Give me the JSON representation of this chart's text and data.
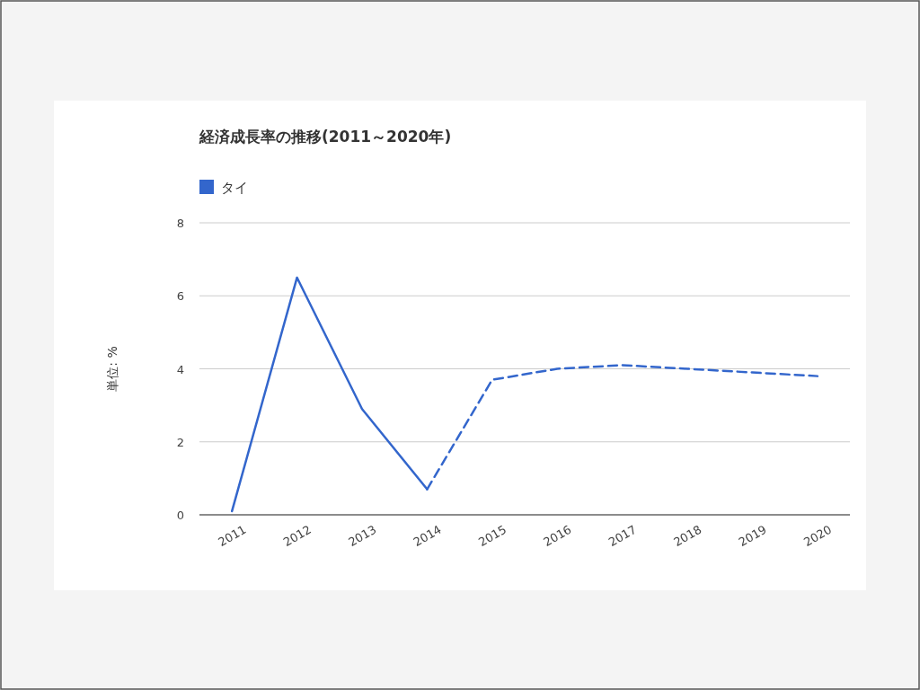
{
  "chart_data": {
    "type": "line",
    "title": "経済成長率の推移(2011～2020年)",
    "ylabel": "単位: %",
    "categories": [
      "2011",
      "2012",
      "2013",
      "2014",
      "2015",
      "2016",
      "2017",
      "2018",
      "2019",
      "2020"
    ],
    "series": [
      {
        "name": "タイ",
        "color": "#3366cc",
        "line_style": "solid",
        "values": [
          0.1,
          6.5,
          2.9,
          0.7,
          null,
          null,
          null,
          null,
          null,
          null
        ]
      },
      {
        "color": "#3366cc",
        "line_style": "dashed",
        "values": [
          null,
          null,
          null,
          0.7,
          3.7,
          4.0,
          4.1,
          4.0,
          3.9,
          3.8
        ]
      }
    ],
    "ylim": [
      0,
      8
    ],
    "yticks": [
      0,
      2,
      4,
      6,
      8
    ],
    "grid": "y",
    "legend": "top left",
    "marker": "none"
  }
}
